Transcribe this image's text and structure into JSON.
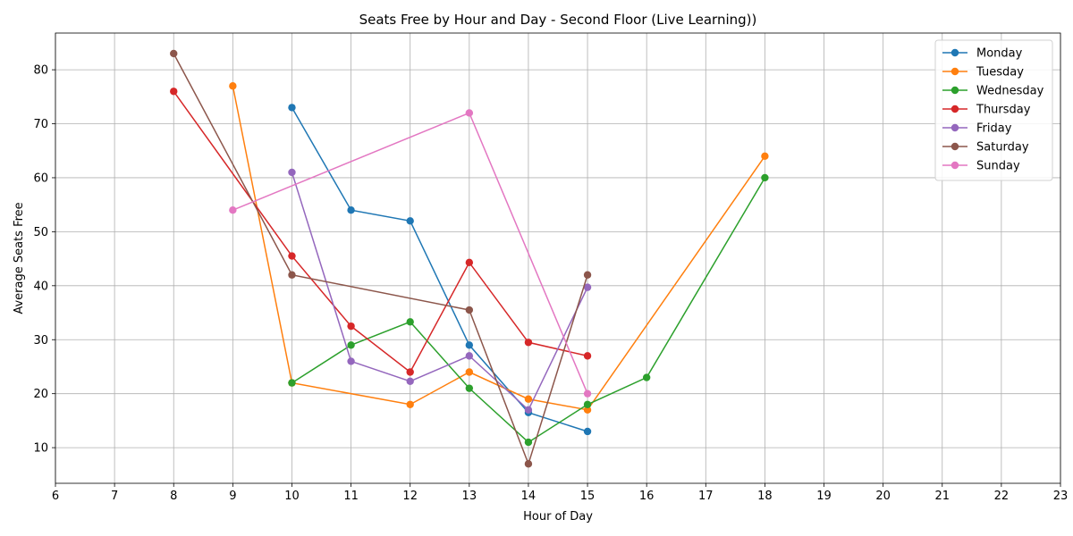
{
  "chart_data": {
    "type": "line",
    "title": "Seats Free by Hour and Day - Second Floor (Live Learning))",
    "xlabel": "Hour of Day",
    "ylabel": "Average Seats Free",
    "xlim": [
      6,
      23
    ],
    "ylim": [
      3.4,
      86.8
    ],
    "xticks": [
      6,
      7,
      8,
      9,
      10,
      11,
      12,
      13,
      14,
      15,
      16,
      17,
      18,
      19,
      20,
      21,
      22,
      23
    ],
    "yticks": [
      10,
      20,
      30,
      40,
      50,
      60,
      70,
      80
    ],
    "grid": true,
    "legend_position": "top-right",
    "series": [
      {
        "name": "Monday",
        "color": "#1f77b4",
        "x": [
          10,
          11,
          12,
          13,
          14,
          15
        ],
        "y": [
          73,
          54,
          52,
          29,
          16.5,
          13
        ]
      },
      {
        "name": "Tuesday",
        "color": "#ff7f0e",
        "x": [
          9,
          10,
          12,
          13,
          14,
          15,
          18
        ],
        "y": [
          77,
          22,
          18,
          24,
          19,
          17,
          64
        ]
      },
      {
        "name": "Wednesday",
        "color": "#2ca02c",
        "x": [
          10,
          11,
          12,
          13,
          14,
          15,
          16,
          18
        ],
        "y": [
          22,
          29,
          33.3,
          21,
          11,
          18,
          23,
          60
        ]
      },
      {
        "name": "Thursday",
        "color": "#d62728",
        "x": [
          8,
          10,
          11,
          12,
          13,
          14,
          15
        ],
        "y": [
          76,
          45.5,
          32.5,
          24,
          44.3,
          29.5,
          27
        ]
      },
      {
        "name": "Friday",
        "color": "#9467bd",
        "x": [
          10,
          11,
          12,
          13,
          14,
          15
        ],
        "y": [
          61,
          26,
          22.3,
          27,
          17,
          39.7
        ]
      },
      {
        "name": "Saturday",
        "color": "#8c564b",
        "x": [
          8,
          10,
          13,
          14,
          15
        ],
        "y": [
          83,
          42,
          35.5,
          7,
          42
        ]
      },
      {
        "name": "Sunday",
        "color": "#e377c2",
        "x": [
          9,
          13,
          15
        ],
        "y": [
          54,
          72,
          20
        ]
      }
    ]
  }
}
